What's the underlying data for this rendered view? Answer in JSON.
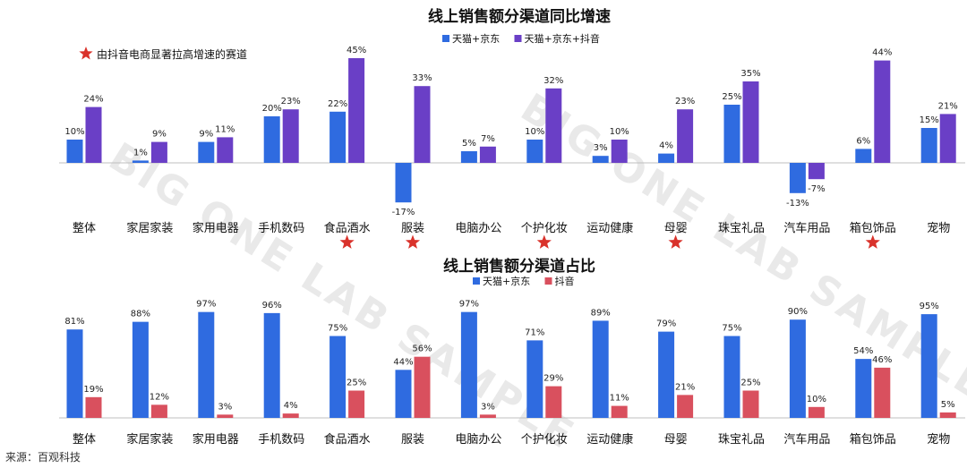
{
  "source": "来源：百观科技",
  "watermark": "BIG ONE LAB SAMPLE",
  "colors": {
    "blue": "#2f6be0",
    "purple": "#6a3fc6",
    "red": "#d9505e",
    "star": "#d9322b",
    "axis": "#bfbfbf"
  },
  "chart_data": [
    {
      "type": "bar",
      "title": "线上销售额分渠道同比增速",
      "categories": [
        "整体",
        "家居家装",
        "家用电器",
        "手机数码",
        "食品酒水",
        "服装",
        "电脑办公",
        "个护化妆",
        "运动健康",
        "母婴",
        "珠宝礼品",
        "汽车用品",
        "箱包饰品",
        "宠物"
      ],
      "series": [
        {
          "name": "天猫+京东",
          "values": [
            10,
            1,
            9,
            20,
            22,
            -17,
            5,
            10,
            3,
            4,
            25,
            -13,
            6,
            15
          ]
        },
        {
          "name": "天猫+京东+抖音",
          "values": [
            24,
            9,
            11,
            23,
            45,
            33,
            7,
            32,
            10,
            23,
            35,
            -7,
            44,
            21
          ]
        }
      ],
      "unit": "%",
      "annotation": "由抖音电商显著拉高增速的赛道",
      "starred": [
        "食品酒水",
        "服装",
        "个护化妆",
        "母婴",
        "箱包饰品"
      ],
      "legend": "top-center",
      "grid": false
    },
    {
      "type": "bar",
      "title": "线上销售额分渠道占比",
      "categories": [
        "整体",
        "家居家装",
        "家用电器",
        "手机数码",
        "食品酒水",
        "服装",
        "电脑办公",
        "个护化妆",
        "运动健康",
        "母婴",
        "珠宝礼品",
        "汽车用品",
        "箱包饰品",
        "宠物"
      ],
      "series": [
        {
          "name": "天猫+京东",
          "values": [
            81,
            88,
            97,
            96,
            75,
            44,
            97,
            71,
            89,
            79,
            75,
            90,
            54,
            95
          ]
        },
        {
          "name": "抖音",
          "values": [
            19,
            12,
            3,
            4,
            25,
            56,
            3,
            29,
            11,
            21,
            25,
            10,
            46,
            5
          ]
        }
      ],
      "unit": "%",
      "legend": "top-center",
      "grid": false
    }
  ]
}
